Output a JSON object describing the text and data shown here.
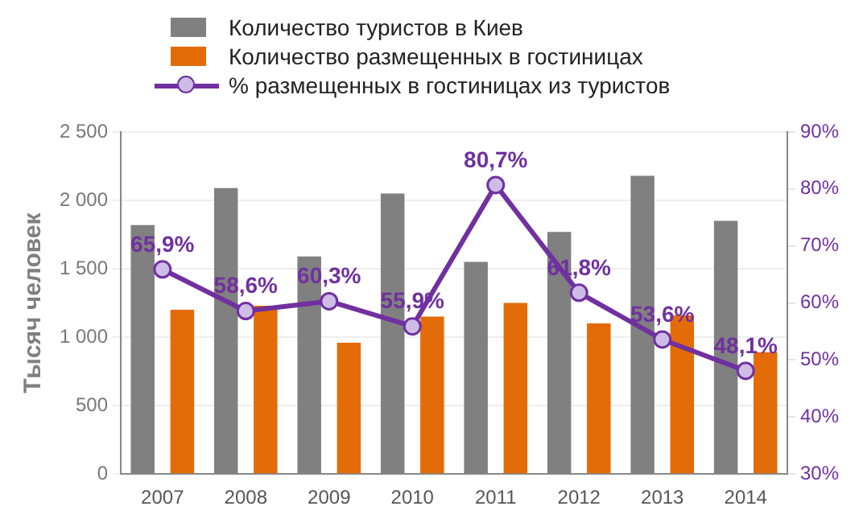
{
  "chart_data": {
    "type": "bar",
    "categories": [
      "2007",
      "2008",
      "2009",
      "2010",
      "2011",
      "2012",
      "2013",
      "2014"
    ],
    "ylabel": "Тысяч человек",
    "series": [
      {
        "name": "Количество туристов в Киев",
        "color": "#808080",
        "values": [
          1820,
          2090,
          1590,
          2050,
          1550,
          1770,
          2180,
          1850
        ]
      },
      {
        "name": "Количество размещенных в гостиницах",
        "color": "#e36c09",
        "values": [
          1200,
          1230,
          960,
          1150,
          1250,
          1100,
          1160,
          890
        ]
      },
      {
        "name": "% размещенных в гостиницах из туристов",
        "type": "line",
        "axis": "y2",
        "color": "#7030a0",
        "marker": "circle",
        "values": [
          65.9,
          58.6,
          60.3,
          55.9,
          80.7,
          61.8,
          53.6,
          48.1
        ],
        "value_labels": [
          "65,9%",
          "58,6%",
          "60,3%",
          "55,9%",
          "80,7%",
          "61,8%",
          "53,6%",
          "48,1%"
        ]
      }
    ],
    "ylim": [
      0,
      2500
    ],
    "yticks": [
      0,
      500,
      {
        "value": 1000,
        "label": "1 000"
      },
      {
        "value": 1500,
        "label": "1 500"
      },
      {
        "value": 2000,
        "label": "2 000"
      },
      {
        "value": 2500,
        "label": "2 500"
      }
    ],
    "y2lim": [
      30,
      90
    ],
    "y2ticks": [
      {
        "value": 30,
        "label": "30%"
      },
      {
        "value": 40,
        "label": "40%"
      },
      {
        "value": 50,
        "label": "50%"
      },
      {
        "value": 60,
        "label": "60%"
      },
      {
        "value": 70,
        "label": "70%"
      },
      {
        "value": 80,
        "label": "80%"
      },
      {
        "value": 90,
        "label": "90%"
      }
    ],
    "grid": "y",
    "legend": "top"
  }
}
